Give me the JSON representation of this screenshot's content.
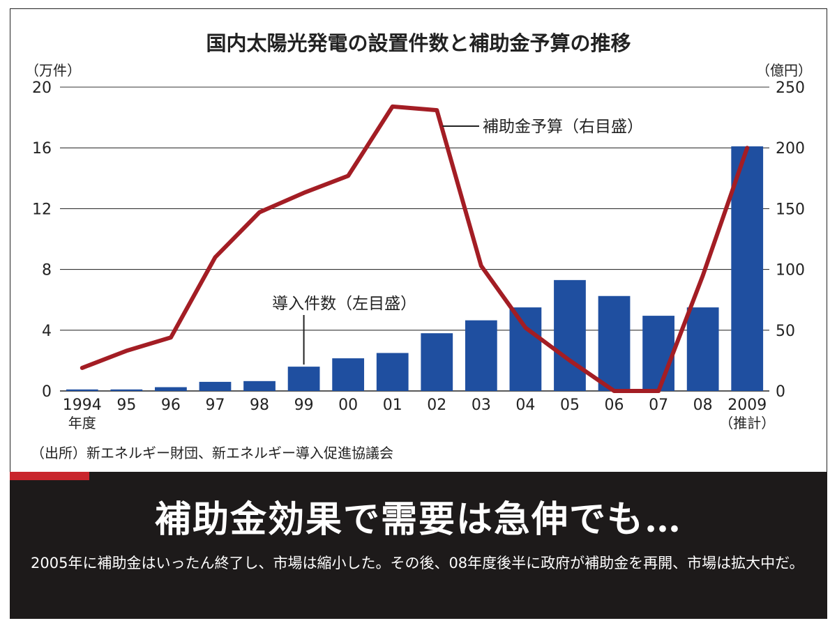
{
  "chart_data": {
    "type": "bar+line",
    "title": "国内太陽光発電の設置件数と補助金予算の推移",
    "left_unit": "（万件）",
    "right_unit": "（億円）",
    "left_ticks": [
      "0",
      "4",
      "8",
      "12",
      "16",
      "20"
    ],
    "right_ticks": [
      "0",
      "50",
      "100",
      "150",
      "200",
      "250"
    ],
    "left_ylim": [
      0,
      20
    ],
    "right_ylim": [
      0,
      250
    ],
    "categories": [
      "1994",
      "95",
      "96",
      "97",
      "98",
      "99",
      "00",
      "01",
      "02",
      "03",
      "04",
      "05",
      "06",
      "07",
      "08",
      "2009"
    ],
    "category_sublabels": {
      "1994": "年度",
      "2009": "（推計）"
    },
    "grid": true,
    "series": [
      {
        "name": "導入件数（左目盛）",
        "type": "bar",
        "axis": "left",
        "color": "#1f4fa0",
        "values": [
          0.1,
          0.1,
          0.25,
          0.6,
          0.65,
          1.6,
          2.15,
          2.5,
          3.8,
          4.65,
          5.5,
          7.3,
          6.25,
          4.95,
          5.5,
          16.1
        ]
      },
      {
        "name": "補助金予算（右目盛）",
        "type": "line",
        "axis": "right",
        "color": "#a31d24",
        "values": [
          19,
          33,
          44,
          110,
          147,
          163,
          177,
          234,
          231,
          103,
          52,
          25,
          0,
          0,
          95,
          200
        ]
      }
    ],
    "bar_label_anchor_index": 5,
    "line_label_anchor_index": 8
  },
  "source": "（出所）新エネルギー財団、新エネルギー導入促進協議会",
  "footer": {
    "headline": "補助金効果で需要は急伸でも…",
    "caption": "2005年に補助金はいったん終了し、市場は縮小した。その後、08年度後半に政府が補助金を再開、市場は拡大中だ。",
    "accent_color": "#c9252c",
    "background_color": "#1d1a1a"
  }
}
